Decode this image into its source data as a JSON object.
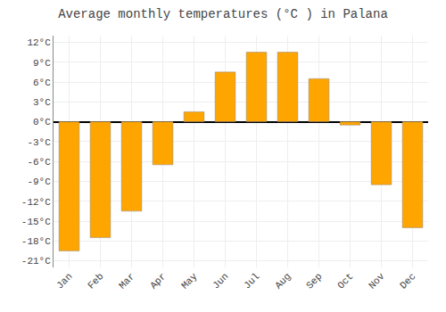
{
  "chart_data": {
    "type": "bar",
    "title": "Average monthly temperatures (°C ) in Palana",
    "categories": [
      "Jan",
      "Feb",
      "Mar",
      "Apr",
      "May",
      "Jun",
      "Jul",
      "Aug",
      "Sep",
      "Oct",
      "Nov",
      "Dec"
    ],
    "values": [
      -19.5,
      -17.5,
      -13.5,
      -6.5,
      1.5,
      7.5,
      10.5,
      10.5,
      6.5,
      -0.5,
      -9.5,
      -16.0
    ],
    "color": "#FFA500",
    "ylim": [
      -22,
      13
    ],
    "yticks": [
      {
        "value": -21,
        "label": "-21°C"
      },
      {
        "value": -18,
        "label": "-18°C"
      },
      {
        "value": -15,
        "label": "-15°C"
      },
      {
        "value": -12,
        "label": "-12°C"
      },
      {
        "value": -9,
        "label": "-9°C"
      },
      {
        "value": -6,
        "label": "-6°C"
      },
      {
        "value": -3,
        "label": "-3°C"
      },
      {
        "value": 0,
        "label": "0°C"
      },
      {
        "value": 3,
        "label": "3°C"
      },
      {
        "value": 6,
        "label": "6°C"
      },
      {
        "value": 9,
        "label": "9°C"
      },
      {
        "value": 12,
        "label": "12°C"
      }
    ],
    "grid": true
  }
}
